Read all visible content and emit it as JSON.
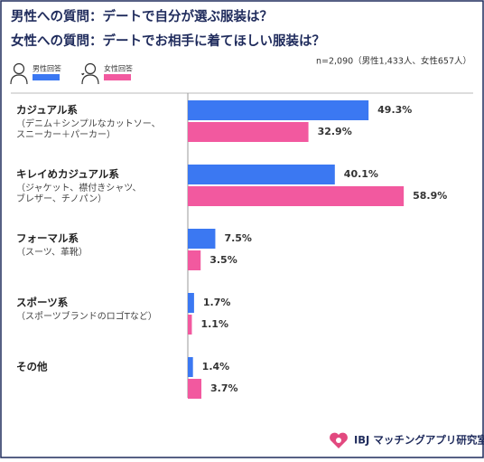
{
  "chart_data": {
    "type": "hbar",
    "title_lines": [
      "男性への質問：デートで自分が選ぶ服装は？",
      "女性への質問：デートでお相手に着てほしい服装は？"
    ],
    "note": "n=2,090（男性1,433人、女性657人）",
    "categories": [
      "カジュアル系",
      "キレイめカジュアル系",
      "フォーマル系",
      "スポーツ系",
      "その他"
    ],
    "descriptions": [
      [
        "（デニム＋シンプルなカットソー、",
        "スニーカー＋パーカー）"
      ],
      [
        "（ジャケット、襟付きシャツ、",
        "ブレザー、チノパン）"
      ],
      [
        "（スーツ、革靴）"
      ],
      [
        "（スポーツブランドのロゴTなど）"
      ],
      []
    ],
    "series": [
      {
        "name": "男性回答",
        "color": "#3b78f2",
        "values": [
          49.3,
          40.1,
          7.5,
          1.7,
          1.4
        ],
        "value_labels": [
          "49.3%",
          "40.1%",
          "7.5%",
          "1.7%",
          "1.4%"
        ]
      },
      {
        "name": "女性回答",
        "color": "#f2599f",
        "values": [
          32.9,
          58.9,
          3.5,
          1.1,
          3.7
        ],
        "value_labels": [
          "32.9%",
          "58.9%",
          "3.5%",
          "1.1%",
          "3.7%"
        ]
      }
    ],
    "brand": "IBJ マッチングアプリ研究室"
  }
}
